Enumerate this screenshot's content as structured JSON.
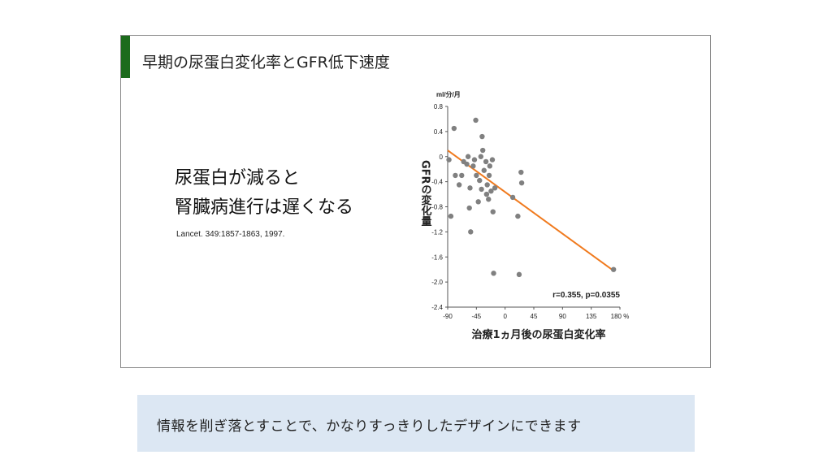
{
  "slide": {
    "title": "早期の尿蛋白変化率とGFR低下速度",
    "message_line1": "尿蛋白が減ると",
    "message_line2": "腎臓病進行は遅くなる",
    "citation": "Lancet. 349:1857-1863,  1997."
  },
  "caption": "情報を削ぎ落とすことで、かなりすっきりしたデザインにできます",
  "chart_data": {
    "type": "scatter",
    "ylabel": "GFRの変化量",
    "yunit": "ml/分/月",
    "xlabel": "治療1ヵ月後の尿蛋白変化率",
    "xunit": "%",
    "xlim": [
      -90,
      180
    ],
    "ylim": [
      -2.4,
      0.8
    ],
    "xticks": [
      -90,
      -45,
      0,
      45,
      90,
      135,
      180
    ],
    "xtick_labels": [
      "-90",
      "-45",
      "0",
      "45",
      "90",
      "135",
      "180 %"
    ],
    "yticks": [
      0.8,
      0.4,
      0,
      -0.4,
      -0.8,
      -1.2,
      -1.6,
      -2.0,
      -2.4
    ],
    "ytick_labels": [
      "0.8",
      "0.4",
      "0",
      "-0.4",
      "-0.8",
      "-1.2",
      "-1.6",
      "-2.0",
      "-2.4"
    ],
    "annotation": "r=0.355, p=0.0355",
    "points": [
      {
        "x": -88,
        "y": -0.05
      },
      {
        "x": -85,
        "y": -0.95
      },
      {
        "x": -80,
        "y": 0.45
      },
      {
        "x": -78,
        "y": -0.3
      },
      {
        "x": -72,
        "y": -0.45
      },
      {
        "x": -68,
        "y": -0.3
      },
      {
        "x": -65,
        "y": -0.08
      },
      {
        "x": -60,
        "y": -0.12
      },
      {
        "x": -58,
        "y": 0.0
      },
      {
        "x": -56,
        "y": -0.82
      },
      {
        "x": -55,
        "y": -0.5
      },
      {
        "x": -54,
        "y": -1.2
      },
      {
        "x": -50,
        "y": -0.15
      },
      {
        "x": -48,
        "y": -0.05
      },
      {
        "x": -46,
        "y": 0.58
      },
      {
        "x": -45,
        "y": -0.3
      },
      {
        "x": -42,
        "y": -0.72
      },
      {
        "x": -40,
        "y": -0.38
      },
      {
        "x": -38,
        "y": 0.0
      },
      {
        "x": -37,
        "y": -0.52
      },
      {
        "x": -36,
        "y": 0.32
      },
      {
        "x": -35,
        "y": 0.1
      },
      {
        "x": -33,
        "y": -0.22
      },
      {
        "x": -30,
        "y": -0.08
      },
      {
        "x": -29,
        "y": -0.6
      },
      {
        "x": -28,
        "y": -0.45
      },
      {
        "x": -26,
        "y": -0.68
      },
      {
        "x": -25,
        "y": -0.3
      },
      {
        "x": -24,
        "y": -0.15
      },
      {
        "x": -22,
        "y": -0.55
      },
      {
        "x": -20,
        "y": -0.05
      },
      {
        "x": -19,
        "y": -0.88
      },
      {
        "x": -18,
        "y": -1.86
      },
      {
        "x": -16,
        "y": -0.5
      },
      {
        "x": 12,
        "y": -0.65
      },
      {
        "x": 20,
        "y": -0.95
      },
      {
        "x": 22,
        "y": -1.88
      },
      {
        "x": 25,
        "y": -0.25
      },
      {
        "x": 26,
        "y": -0.42
      },
      {
        "x": 170,
        "y": -1.8
      }
    ],
    "regression_line": {
      "x": [
        -90,
        170
      ],
      "y": [
        0.1,
        -1.82
      ],
      "color": "#f07a1e"
    },
    "point_color": "#808080"
  }
}
